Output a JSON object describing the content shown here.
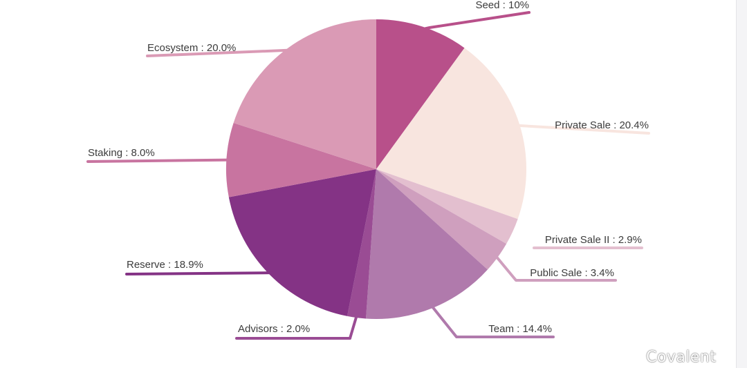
{
  "chart_data": {
    "type": "pie",
    "title": "",
    "start": "top, clockwise",
    "slices": [
      {
        "label": "Seed",
        "value": 10,
        "display": "10%",
        "color": "#b8508a"
      },
      {
        "label": "Private Sale",
        "value": 20.4,
        "display": "20.4%",
        "color": "#f8e5df"
      },
      {
        "label": "Private Sale II",
        "value": 2.9,
        "display": "2.9%",
        "color": "#e3bfcf"
      },
      {
        "label": "Public Sale",
        "value": 3.4,
        "display": "3.4%",
        "color": "#cf9fbe"
      },
      {
        "label": "Team",
        "value": 14.4,
        "display": "14.4%",
        "color": "#b07aac"
      },
      {
        "label": "Advisors",
        "value": 2.0,
        "display": "2.0%",
        "color": "#9a4c94"
      },
      {
        "label": "Reserve",
        "value": 18.9,
        "display": "18.9%",
        "color": "#843385"
      },
      {
        "label": "Staking",
        "value": 8.0,
        "display": "8.0%",
        "color": "#c874a0"
      },
      {
        "label": "Ecosystem",
        "value": 20.0,
        "display": "20.0%",
        "color": "#da9ab5"
      }
    ]
  },
  "watermark": {
    "text": "Covalent",
    "icon": "wechat-icon"
  }
}
